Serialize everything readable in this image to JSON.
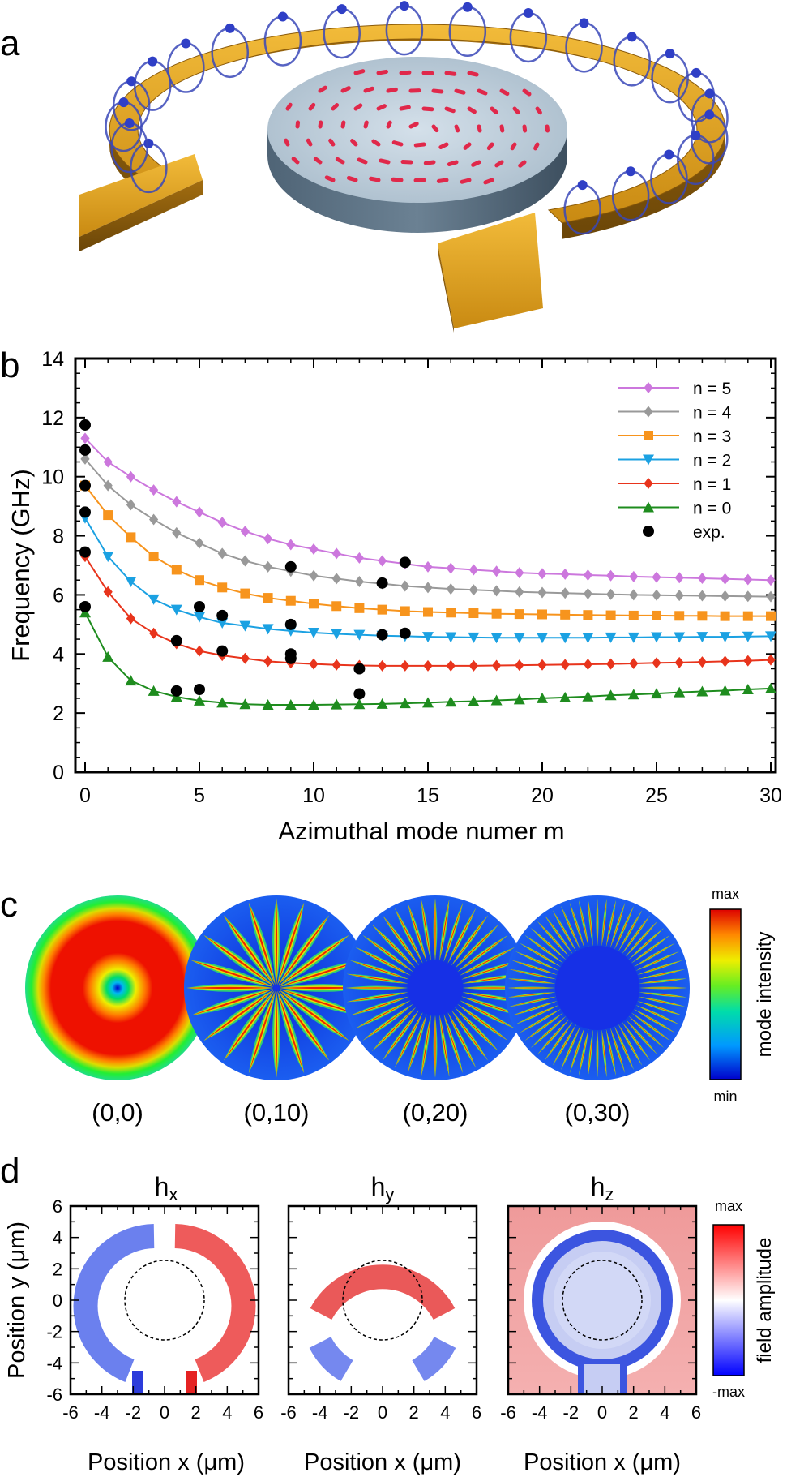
{
  "panels": {
    "a": {
      "letter": "a"
    },
    "b": {
      "letter": "b"
    },
    "c": {
      "letter": "c"
    },
    "d": {
      "letter": "d"
    }
  },
  "chart_data": [
    {
      "type": "line",
      "panel": "b",
      "xlabel": "Azimuthal mode numer m",
      "ylabel": "Frequency (GHz)",
      "xlim": [
        0,
        30
      ],
      "ylim": [
        0,
        14
      ],
      "xticks": [
        "0",
        "5",
        "10",
        "15",
        "20",
        "25",
        "30"
      ],
      "yticks": [
        "0",
        "2",
        "4",
        "6",
        "8",
        "10",
        "12",
        "14"
      ],
      "legend_position": "top-right",
      "series": [
        {
          "name": "n = 5",
          "color": "#cc77dd",
          "marker": "diamond",
          "x": [
            0,
            1,
            2,
            3,
            4,
            5,
            6,
            7,
            8,
            9,
            10,
            11,
            12,
            13,
            14,
            15,
            16,
            17,
            18,
            19,
            20,
            21,
            22,
            23,
            24,
            25,
            26,
            27,
            28,
            29,
            30
          ],
          "values": [
            11.3,
            10.5,
            10.0,
            9.55,
            9.15,
            8.8,
            8.45,
            8.15,
            7.9,
            7.7,
            7.55,
            7.4,
            7.25,
            7.15,
            7.05,
            6.95,
            6.9,
            6.85,
            6.8,
            6.75,
            6.72,
            6.7,
            6.67,
            6.65,
            6.62,
            6.6,
            6.58,
            6.56,
            6.54,
            6.52,
            6.5
          ]
        },
        {
          "name": "n = 4",
          "color": "#999999",
          "marker": "diamond",
          "x": [
            0,
            1,
            2,
            3,
            4,
            5,
            6,
            7,
            8,
            9,
            10,
            11,
            12,
            13,
            14,
            15,
            16,
            17,
            18,
            19,
            20,
            21,
            22,
            23,
            24,
            25,
            26,
            27,
            28,
            29,
            30
          ],
          "values": [
            10.6,
            9.7,
            9.05,
            8.55,
            8.1,
            7.75,
            7.4,
            7.15,
            6.95,
            6.8,
            6.65,
            6.55,
            6.45,
            6.38,
            6.3,
            6.25,
            6.2,
            6.17,
            6.14,
            6.1,
            6.08,
            6.06,
            6.04,
            6.02,
            6.0,
            5.99,
            5.98,
            5.97,
            5.96,
            5.95,
            5.94
          ]
        },
        {
          "name": "n = 3",
          "color": "#f7941d",
          "marker": "square",
          "x": [
            0,
            1,
            2,
            3,
            4,
            5,
            6,
            7,
            8,
            9,
            10,
            11,
            12,
            13,
            14,
            15,
            16,
            17,
            18,
            19,
            20,
            21,
            22,
            23,
            24,
            25,
            26,
            27,
            28,
            29,
            30
          ],
          "values": [
            9.7,
            8.7,
            7.95,
            7.3,
            6.85,
            6.5,
            6.25,
            6.05,
            5.9,
            5.8,
            5.7,
            5.62,
            5.55,
            5.5,
            5.45,
            5.42,
            5.4,
            5.38,
            5.36,
            5.35,
            5.34,
            5.33,
            5.32,
            5.31,
            5.3,
            5.3,
            5.29,
            5.29,
            5.28,
            5.28,
            5.28
          ]
        },
        {
          "name": "n = 2",
          "color": "#1ba1e2",
          "marker": "triangle-down",
          "x": [
            0,
            1,
            2,
            3,
            4,
            5,
            6,
            7,
            8,
            9,
            10,
            11,
            12,
            13,
            14,
            15,
            16,
            17,
            18,
            19,
            20,
            21,
            22,
            23,
            24,
            25,
            26,
            27,
            28,
            29,
            30
          ],
          "values": [
            8.6,
            7.3,
            6.45,
            5.85,
            5.5,
            5.25,
            5.05,
            4.95,
            4.85,
            4.78,
            4.72,
            4.68,
            4.65,
            4.62,
            4.6,
            4.58,
            4.57,
            4.56,
            4.55,
            4.55,
            4.55,
            4.55,
            4.55,
            4.56,
            4.56,
            4.57,
            4.57,
            4.58,
            4.58,
            4.59,
            4.6
          ]
        },
        {
          "name": "n = 1",
          "color": "#e8341c",
          "marker": "diamond",
          "x": [
            0,
            1,
            2,
            3,
            4,
            5,
            6,
            7,
            8,
            9,
            10,
            11,
            12,
            13,
            14,
            15,
            16,
            17,
            18,
            19,
            20,
            21,
            22,
            23,
            24,
            25,
            26,
            27,
            28,
            29,
            30
          ],
          "values": [
            7.3,
            6.1,
            5.2,
            4.7,
            4.35,
            4.1,
            3.95,
            3.85,
            3.75,
            3.7,
            3.66,
            3.63,
            3.61,
            3.6,
            3.6,
            3.6,
            3.6,
            3.6,
            3.61,
            3.62,
            3.63,
            3.64,
            3.65,
            3.66,
            3.68,
            3.7,
            3.71,
            3.73,
            3.75,
            3.77,
            3.8
          ]
        },
        {
          "name": "n = 0",
          "color": "#1e8c1e",
          "marker": "triangle-up",
          "x": [
            0,
            1,
            2,
            3,
            4,
            5,
            6,
            7,
            8,
            9,
            10,
            11,
            12,
            13,
            14,
            15,
            16,
            17,
            18,
            19,
            20,
            21,
            22,
            23,
            24,
            25,
            26,
            27,
            28,
            29,
            30
          ],
          "values": [
            5.4,
            3.9,
            3.1,
            2.75,
            2.55,
            2.42,
            2.35,
            2.3,
            2.28,
            2.28,
            2.28,
            2.29,
            2.3,
            2.31,
            2.33,
            2.35,
            2.38,
            2.4,
            2.43,
            2.46,
            2.5,
            2.53,
            2.56,
            2.6,
            2.63,
            2.66,
            2.7,
            2.73,
            2.76,
            2.8,
            2.83
          ]
        },
        {
          "name": "exp.",
          "color": "#000000",
          "marker": "circle",
          "scatter": true,
          "x": [
            0,
            0,
            0,
            0,
            0,
            0,
            4,
            4,
            5,
            5,
            6,
            6,
            9,
            9,
            9,
            9,
            12,
            12,
            13,
            13,
            14,
            14
          ],
          "values": [
            11.75,
            10.9,
            9.7,
            8.8,
            7.45,
            5.6,
            4.45,
            2.75,
            5.6,
            2.8,
            5.3,
            4.1,
            6.95,
            5.0,
            4.0,
            3.85,
            3.5,
            2.65,
            6.4,
            4.65,
            7.1,
            4.7
          ]
        }
      ]
    },
    {
      "type": "heatmap",
      "panel": "c",
      "labels": [
        "(0,0)",
        "(0,10)",
        "(0,20)",
        "(0,30)"
      ],
      "colorbar": {
        "max": "max",
        "min": "min",
        "label": "mode intensity"
      }
    },
    {
      "type": "heatmap",
      "panel": "d",
      "titles": [
        "h",
        "h",
        "h"
      ],
      "title_subscripts": [
        "x",
        "y",
        "z"
      ],
      "xlabel": "Position x (μm)",
      "ylabel": "Position y (μm)",
      "xlim": [
        -6,
        6
      ],
      "ylim": [
        -6,
        6
      ],
      "ticks": [
        "-6",
        "-4",
        "-2",
        "0",
        "2",
        "4",
        "6"
      ],
      "colorbar": {
        "max": "max",
        "min": "-max",
        "label": "field amplitude"
      }
    }
  ]
}
